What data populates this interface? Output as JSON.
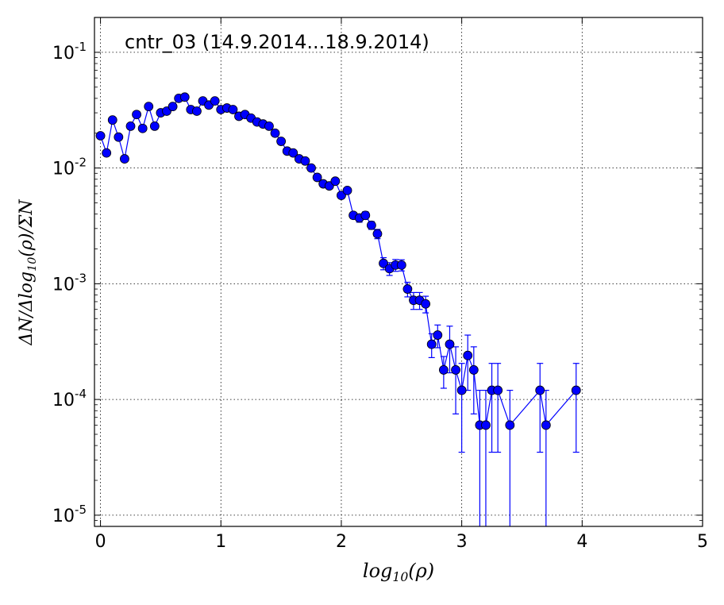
{
  "chart_data": {
    "type": "scatter",
    "title": "cntr_03 (14.9.2014...18.9.2014)",
    "xlabel": "log10(ρ)",
    "ylabel": "ΔN/Δlog10(ρ)/ΣN",
    "xlim": [
      -0.05,
      5
    ],
    "ylim": [
      8e-06,
      0.2
    ],
    "yscale": "log",
    "grid": true,
    "x_ticks": [
      "0",
      "1",
      "2",
      "3",
      "4",
      "5"
    ],
    "y_ticks": [
      {
        "base": "10",
        "exp": "-1"
      },
      {
        "base": "10",
        "exp": "-2"
      },
      {
        "base": "10",
        "exp": "-3"
      },
      {
        "base": "10",
        "exp": "-4"
      },
      {
        "base": "10",
        "exp": "-5"
      }
    ],
    "series": [
      {
        "color": "#0000ff",
        "x": [
          0.0,
          0.05,
          0.1,
          0.15,
          0.2,
          0.25,
          0.3,
          0.35,
          0.4,
          0.45,
          0.5,
          0.55,
          0.6,
          0.65,
          0.7,
          0.75,
          0.8,
          0.85,
          0.9,
          0.95,
          1.0,
          1.05,
          1.1,
          1.15,
          1.2,
          1.25,
          1.3,
          1.35,
          1.4,
          1.45,
          1.5,
          1.55,
          1.6,
          1.65,
          1.7,
          1.75,
          1.8,
          1.85,
          1.9,
          1.95,
          2.0,
          2.05,
          2.1,
          2.15,
          2.2,
          2.25,
          2.3,
          2.35,
          2.4,
          2.45,
          2.5,
          2.55,
          2.6,
          2.65,
          2.7,
          2.75,
          2.8,
          2.85,
          2.9,
          2.95,
          3.0,
          3.05,
          3.1,
          3.15,
          3.2,
          3.25,
          3.3,
          3.4,
          3.65,
          3.7,
          3.95
        ],
        "y": [
          0.019,
          0.0135,
          0.026,
          0.0185,
          0.012,
          0.023,
          0.029,
          0.022,
          0.034,
          0.023,
          0.03,
          0.031,
          0.034,
          0.04,
          0.041,
          0.032,
          0.031,
          0.038,
          0.035,
          0.038,
          0.032,
          0.033,
          0.032,
          0.028,
          0.029,
          0.027,
          0.025,
          0.024,
          0.023,
          0.02,
          0.017,
          0.014,
          0.0135,
          0.012,
          0.0115,
          0.01,
          0.0083,
          0.0073,
          0.007,
          0.0077,
          0.0058,
          0.0064,
          0.0039,
          0.0037,
          0.0039,
          0.0032,
          0.0027,
          0.0015,
          0.00135,
          0.00145,
          0.00145,
          0.0009,
          0.00072,
          0.00072,
          0.00067,
          0.0003,
          0.00036,
          0.00018,
          0.0003,
          0.00018,
          0.00012,
          0.00024,
          0.00018,
          6e-05,
          6e-05,
          0.00012,
          0.00012,
          6e-05,
          0.00012,
          6e-05,
          0.00012
        ],
        "yerr": [
          0.0004,
          0.0003,
          0.0005,
          0.0004,
          0.0003,
          0.0005,
          0.0005,
          0.0004,
          0.0006,
          0.0005,
          0.0006,
          0.0006,
          0.0006,
          0.0007,
          0.0007,
          0.0006,
          0.0006,
          0.0006,
          0.0006,
          0.0006,
          0.0006,
          0.0006,
          0.0006,
          0.0005,
          0.0005,
          0.0005,
          0.0005,
          0.0005,
          0.0005,
          0.0004,
          0.0004,
          0.0004,
          0.0004,
          0.0004,
          0.0004,
          0.0003,
          0.0003,
          0.0003,
          0.0003,
          0.0003,
          0.0003,
          0.0003,
          0.00025,
          0.0003,
          0.0003,
          0.00025,
          0.00025,
          0.00018,
          0.00017,
          0.00017,
          0.00016,
          0.00013,
          0.00012,
          0.00012,
          0.00011,
          7e-05,
          8e-05,
          5.5e-05,
          0.00013,
          0.000105,
          8.5e-05,
          0.00012,
          0.000105,
          6e-05,
          6e-05,
          8.5e-05,
          8.5e-05,
          6e-05,
          8.5e-05,
          6e-05,
          8.5e-05
        ]
      }
    ]
  }
}
